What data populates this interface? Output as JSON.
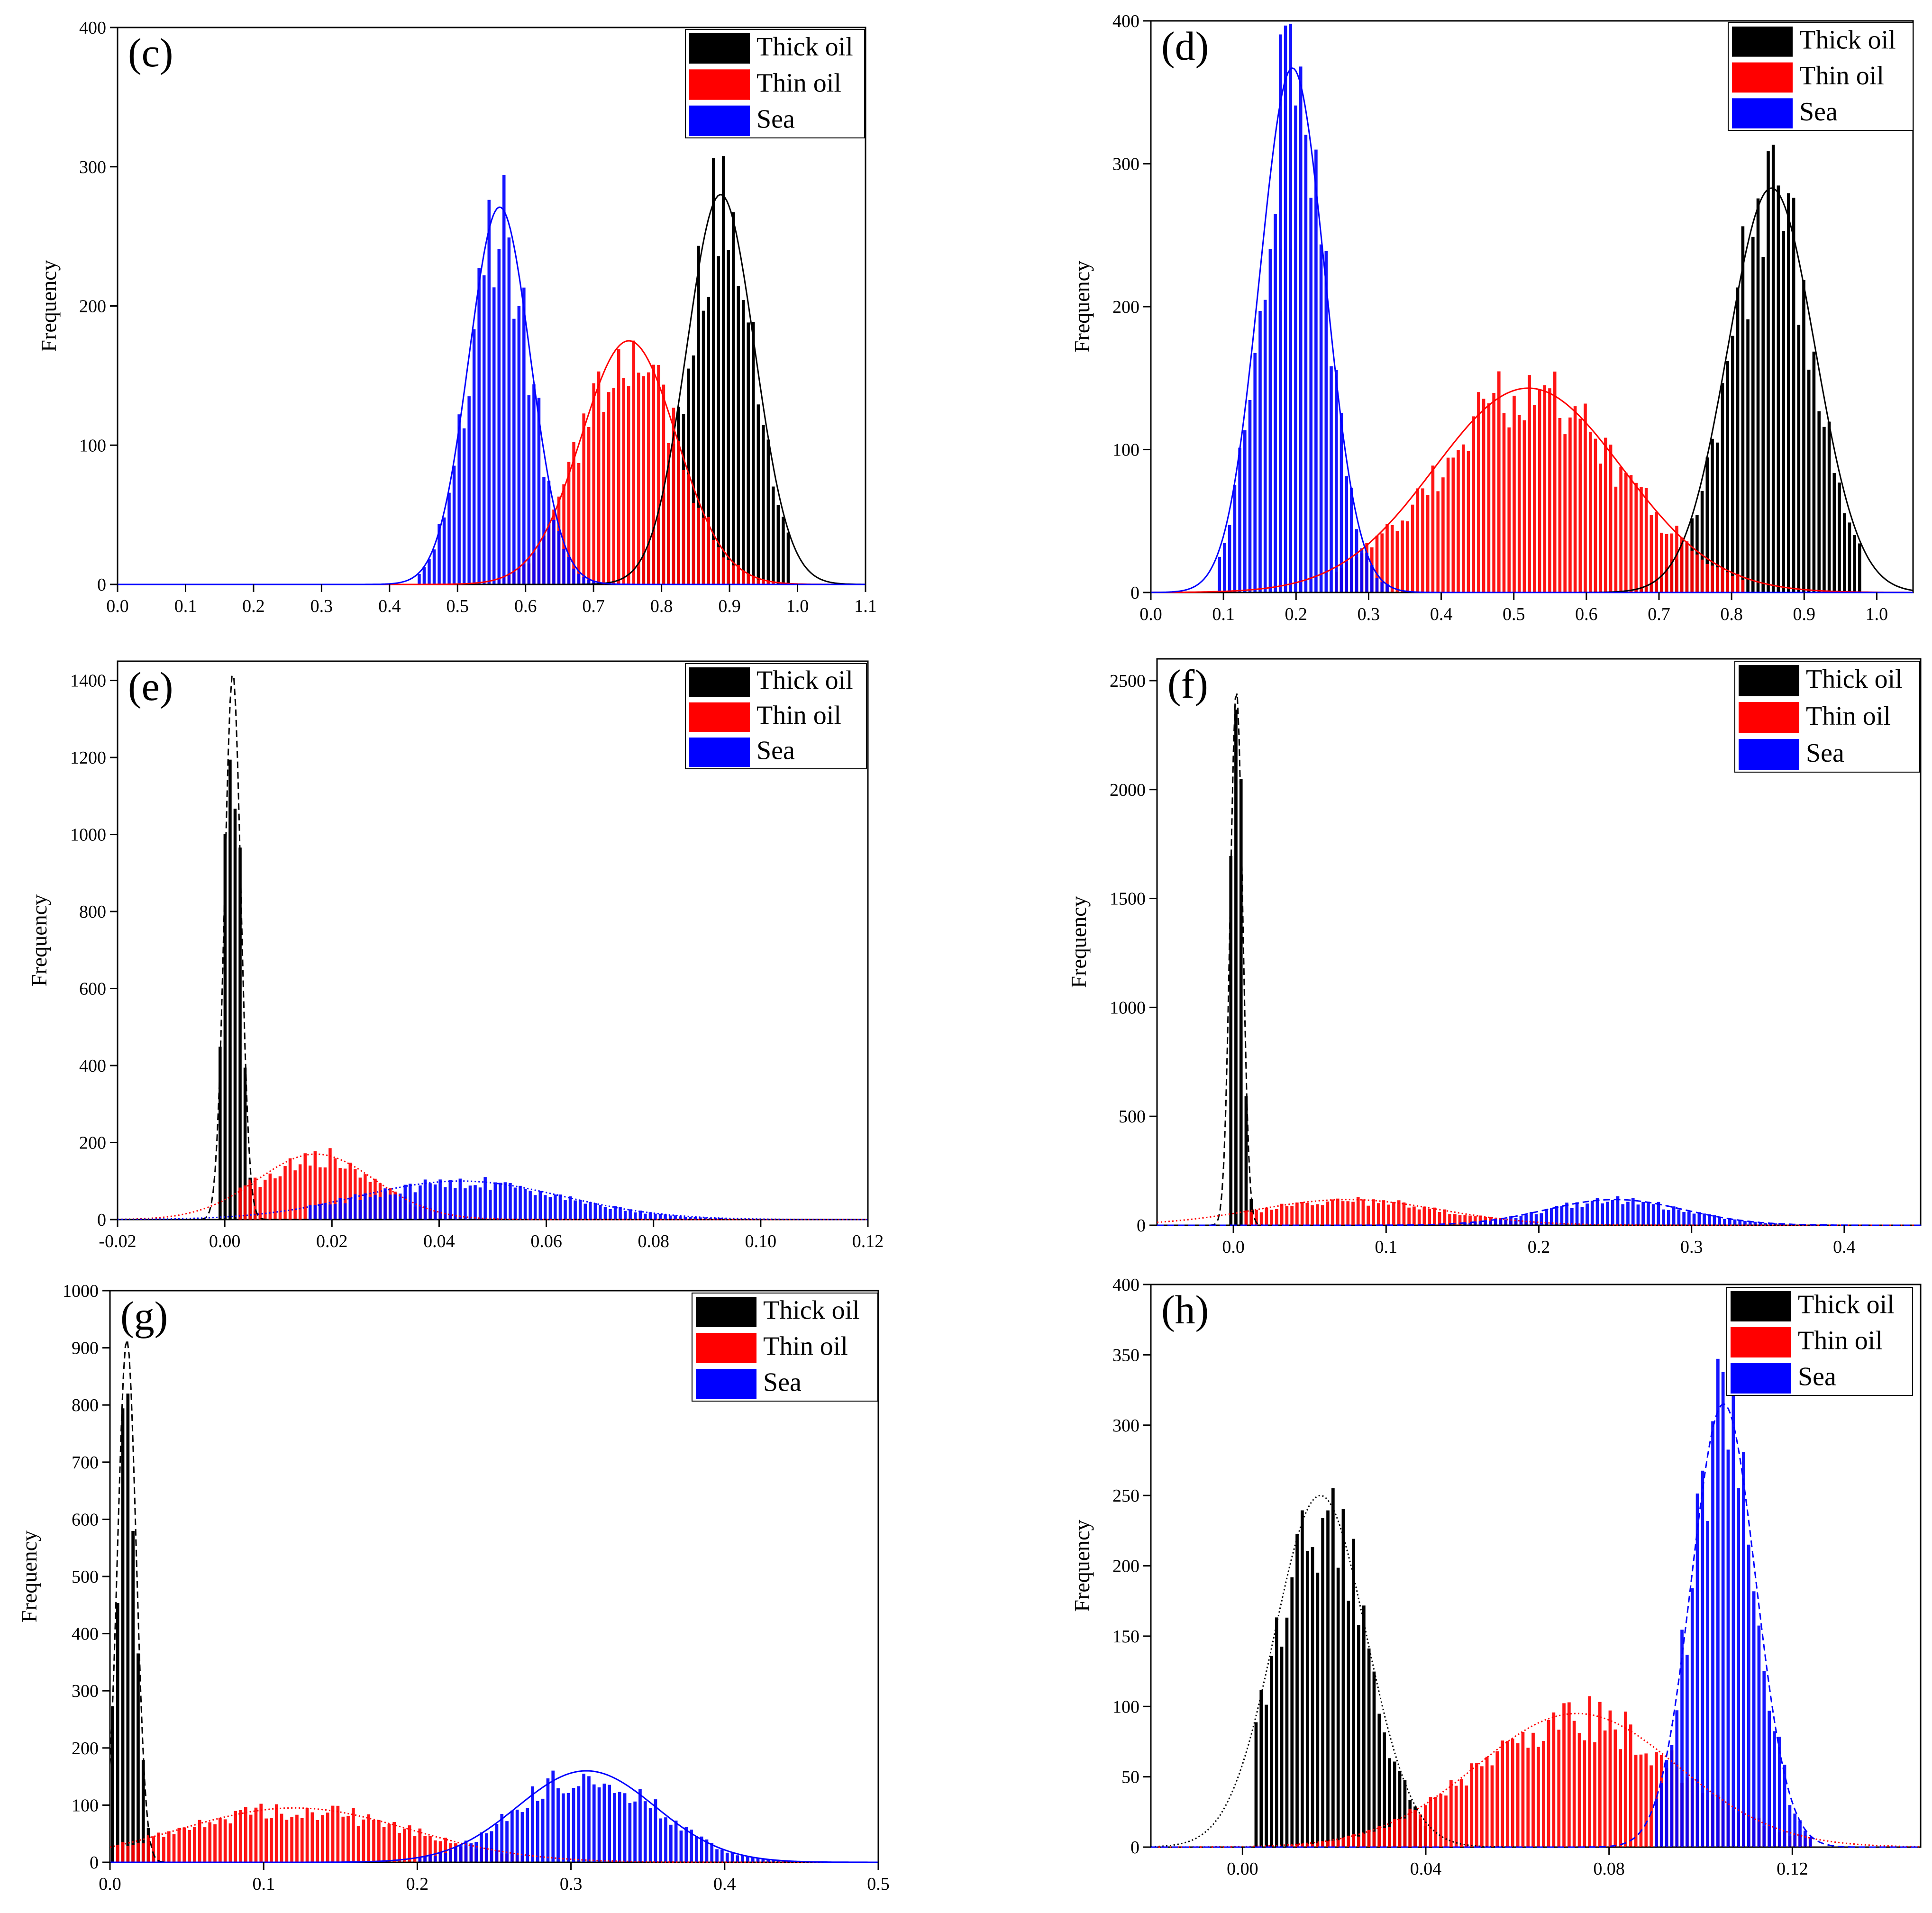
{
  "figure": {
    "series_names": [
      "Thick oil",
      "Thin oil",
      "Sea"
    ],
    "series_colors": {
      "Thick oil": "#000000",
      "Thin oil": "#ff0000",
      "Sea": "#0000ff"
    },
    "ylabel": "Frequency"
  },
  "chart_data": [
    {
      "panel": "(c)",
      "type": "bar",
      "ylabel": "Frequency",
      "xlim": [
        0.0,
        1.1
      ],
      "ylim": [
        0,
        400
      ],
      "xticks": [
        0.0,
        0.1,
        0.2,
        0.3,
        0.4,
        0.5,
        0.6,
        0.7,
        0.8,
        0.9,
        1.0,
        1.1
      ],
      "xtick_labels": [
        "0.0",
        "0.1",
        "0.2",
        "0.3",
        "0.4",
        "0.5",
        "0.6",
        "0.7",
        "0.8",
        "0.9",
        "1.0",
        "1.1"
      ],
      "yticks": [
        0,
        100,
        200,
        300,
        400
      ],
      "ytick_labels": [
        "0",
        "100",
        "200",
        "300",
        "400"
      ],
      "legend": [
        "Thick oil",
        "Thin oil",
        "Sea"
      ],
      "series": [
        {
          "name": "Thick oil",
          "color": "#000000",
          "mean": 0.887,
          "sd": 0.05,
          "peak": 280,
          "range": [
            0.76,
            0.99
          ],
          "fit_dash": "none"
        },
        {
          "name": "Thin oil",
          "color": "#ff0000",
          "mean": 0.752,
          "sd": 0.07,
          "peak": 175,
          "range": [
            0.56,
            0.97
          ],
          "fit_dash": "none"
        },
        {
          "name": "Sea",
          "color": "#0000ff",
          "mean": 0.562,
          "sd": 0.045,
          "peak": 271,
          "range": [
            0.44,
            0.74
          ],
          "fit_dash": "none"
        }
      ]
    },
    {
      "panel": "(d)",
      "type": "bar",
      "ylabel": "Frequency",
      "xlim": [
        0.0,
        1.05
      ],
      "ylim": [
        0,
        400
      ],
      "xticks": [
        0.0,
        0.1,
        0.2,
        0.3,
        0.4,
        0.5,
        0.6,
        0.7,
        0.8,
        0.9,
        1.0
      ],
      "xtick_labels": [
        "0.0",
        "0.1",
        "0.2",
        "0.3",
        "0.4",
        "0.5",
        "0.6",
        "0.7",
        "0.8",
        "0.9",
        "1.0"
      ],
      "yticks": [
        0,
        100,
        200,
        300,
        400
      ],
      "ytick_labels": [
        "0",
        "100",
        "200",
        "300",
        "400"
      ],
      "legend": [
        "Thick oil",
        "Thin oil",
        "Sea"
      ],
      "series": [
        {
          "name": "Thick oil",
          "color": "#000000",
          "mean": 0.855,
          "sd": 0.06,
          "peak": 283,
          "range": [
            0.65,
            0.98
          ],
          "fit_dash": "none"
        },
        {
          "name": "Thin oil",
          "color": "#ff0000",
          "mean": 0.52,
          "sd": 0.13,
          "peak": 143,
          "range": [
            0.25,
            0.82
          ],
          "fit_dash": "none"
        },
        {
          "name": "Sea",
          "color": "#0000ff",
          "mean": 0.195,
          "sd": 0.045,
          "peak": 367,
          "range": [
            0.09,
            0.33
          ],
          "fit_dash": "none"
        }
      ]
    },
    {
      "panel": "(e)",
      "type": "bar",
      "ylabel": "Frequency",
      "xlim": [
        -0.02,
        0.12
      ],
      "ylim": [
        0,
        1450
      ],
      "xticks": [
        -0.02,
        0.0,
        0.02,
        0.04,
        0.06,
        0.08,
        0.1,
        0.12
      ],
      "xtick_labels": [
        "-0.02",
        "0.00",
        "0.02",
        "0.04",
        "0.06",
        "0.08",
        "0.10",
        "0.12"
      ],
      "yticks": [
        0,
        200,
        400,
        600,
        800,
        1000,
        1200,
        1400
      ],
      "ytick_labels": [
        "0",
        "200",
        "400",
        "600",
        "800",
        "1000",
        "1200",
        "1400"
      ],
      "legend": [
        "Thick oil",
        "Thin oil",
        "Sea"
      ],
      "series": [
        {
          "name": "Thick oil",
          "color": "#000000",
          "mean": 0.0015,
          "sd": 0.0015,
          "peak": 1420,
          "range": [
            -0.001,
            0.006
          ],
          "fit_dash": "dashed"
        },
        {
          "name": "Thin oil",
          "color": "#ff0000",
          "mean": 0.017,
          "sd": 0.011,
          "peak": 170,
          "range": [
            0.002,
            0.045
          ],
          "fit_dash": "dotted"
        },
        {
          "name": "Sea",
          "color": "#0000ff",
          "mean": 0.044,
          "sd": 0.019,
          "peak": 100,
          "range": [
            0.015,
            0.1
          ],
          "fit_dash": "dotted"
        }
      ]
    },
    {
      "panel": "(f)",
      "type": "bar",
      "ylabel": "Frequency",
      "xlim": [
        -0.05,
        0.45
      ],
      "ylim": [
        0,
        2600
      ],
      "xticks": [
        0.0,
        0.1,
        0.2,
        0.3,
        0.4
      ],
      "xtick_labels": [
        "0.0",
        "0.1",
        "0.2",
        "0.3",
        "0.4"
      ],
      "yticks": [
        0,
        500,
        1000,
        1500,
        2000,
        2500
      ],
      "ytick_labels": [
        "0",
        "500",
        "1000",
        "1500",
        "2000",
        "2500"
      ],
      "legend": [
        "Thick oil",
        "Thin oil",
        "Sea"
      ],
      "series": [
        {
          "name": "Thick oil",
          "color": "#000000",
          "mean": 0.002,
          "sd": 0.004,
          "peak": 2460,
          "range": [
            -0.004,
            0.012
          ],
          "fit_dash": "dashed"
        },
        {
          "name": "Thin oil",
          "color": "#ff0000",
          "mean": 0.075,
          "sd": 0.06,
          "peak": 118,
          "range": [
            0.005,
            0.22
          ],
          "fit_dash": "dotted"
        },
        {
          "name": "Sea",
          "color": "#0000ff",
          "mean": 0.25,
          "sd": 0.045,
          "peak": 118,
          "range": [
            0.15,
            0.42
          ],
          "fit_dash": "dashed"
        }
      ]
    },
    {
      "panel": "(g)",
      "type": "bar",
      "ylabel": "Frequency",
      "xlim": [
        0.0,
        0.5
      ],
      "ylim": [
        0,
        1000
      ],
      "xticks": [
        0.0,
        0.1,
        0.2,
        0.3,
        0.4,
        0.5
      ],
      "xtick_labels": [
        "0.0",
        "0.1",
        "0.2",
        "0.3",
        "0.4",
        "0.5"
      ],
      "yticks": [
        0,
        100,
        200,
        300,
        400,
        500,
        600,
        700,
        800,
        900,
        1000
      ],
      "ytick_labels": [
        "0",
        "100",
        "200",
        "300",
        "400",
        "500",
        "600",
        "700",
        "800",
        "900",
        "1000"
      ],
      "legend": [
        "Thick oil",
        "Thin oil",
        "Sea"
      ],
      "series": [
        {
          "name": "Thick oil",
          "color": "#000000",
          "mean": 0.011,
          "sd": 0.006,
          "peak": 915,
          "range": [
            0.0,
            0.03
          ],
          "fit_dash": "dashed"
        },
        {
          "name": "Thin oil",
          "color": "#ff0000",
          "mean": 0.12,
          "sd": 0.075,
          "peak": 95,
          "range": [
            0.005,
            0.27
          ],
          "fit_dash": "dotted"
        },
        {
          "name": "Sea",
          "color": "#0000ff",
          "mean": 0.31,
          "sd": 0.045,
          "peak": 160,
          "range": [
            0.2,
            0.46
          ],
          "fit_dash": "none"
        }
      ]
    },
    {
      "panel": "(h)",
      "type": "bar",
      "ylabel": "Frequency",
      "xlim": [
        -0.02,
        0.148
      ],
      "ylim": [
        0,
        400
      ],
      "xticks": [
        0.0,
        0.04,
        0.08,
        0.12
      ],
      "xtick_labels": [
        "0.00",
        "0.04",
        "0.08",
        "0.12"
      ],
      "yticks": [
        0,
        50,
        100,
        150,
        200,
        250,
        300,
        350,
        400
      ],
      "ytick_labels": [
        "0",
        "50",
        "100",
        "150",
        "200",
        "250",
        "300",
        "350",
        "400"
      ],
      "legend": [
        "Thick oil",
        "Thin oil",
        "Sea"
      ],
      "series": [
        {
          "name": "Thick oil",
          "color": "#000000",
          "mean": 0.017,
          "sd": 0.01,
          "peak": 250,
          "range": [
            0.002,
            0.04
          ],
          "fit_dash": "dotted"
        },
        {
          "name": "Thin oil",
          "color": "#ff0000",
          "mean": 0.073,
          "sd": 0.022,
          "peak": 95,
          "range": [
            0.01,
            0.125
          ],
          "fit_dash": "dotted"
        },
        {
          "name": "Sea",
          "color": "#0000ff",
          "mean": 0.105,
          "sd": 0.007,
          "peak": 315,
          "range": [
            0.09,
            0.125
          ],
          "fit_dash": "dashed"
        }
      ]
    }
  ]
}
